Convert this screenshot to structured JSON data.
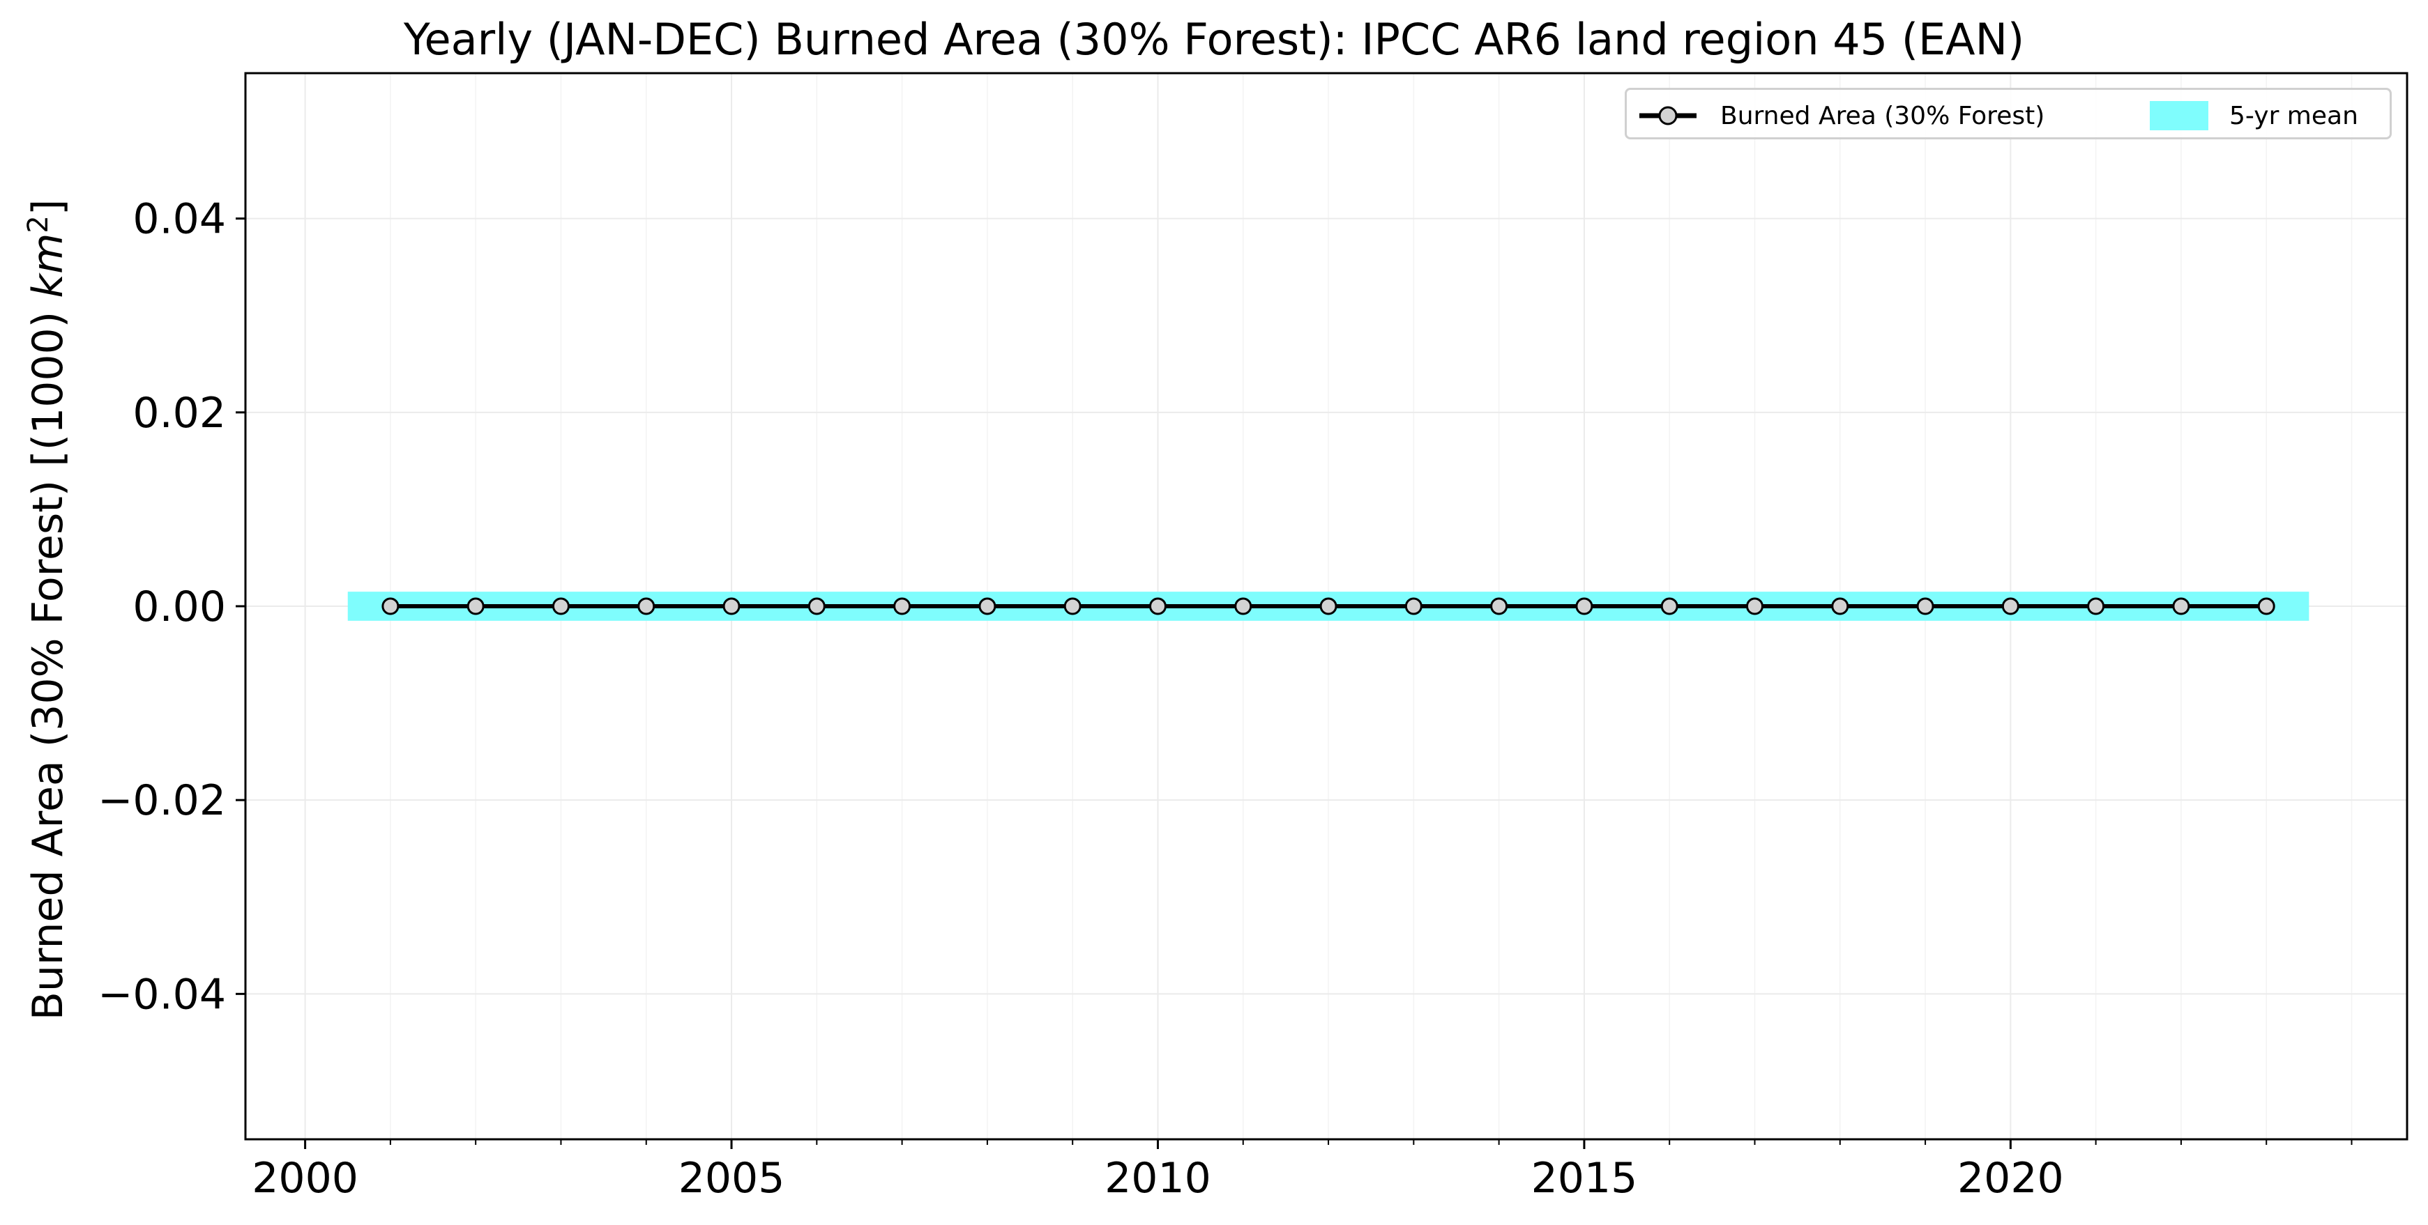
{
  "chart_data": {
    "type": "line",
    "title": "Yearly (JAN-DEC) Burned Area (30% Forest): IPCC AR6 land region 45 (EAN)",
    "ylabel_prefix": "Burned Area (30% Forest) [(1000) ",
    "ylabel_unit": "km",
    "ylabel_exp": "2",
    "ylabel_suffix": "]",
    "xlim": [
      1999.3,
      2024.65
    ],
    "ylim": [
      -0.055,
      0.055
    ],
    "xticks": [
      2000,
      2005,
      2010,
      2015,
      2020
    ],
    "xtick_labels": [
      "2000",
      "2005",
      "2010",
      "2015",
      "2020"
    ],
    "x_minor_ticks": [
      2001,
      2002,
      2003,
      2004,
      2006,
      2007,
      2008,
      2009,
      2011,
      2012,
      2013,
      2014,
      2016,
      2017,
      2018,
      2019,
      2021,
      2022,
      2023,
      2024
    ],
    "yticks": [
      0.04,
      0.02,
      0.0,
      -0.02,
      -0.04
    ],
    "ytick_labels": [
      "0.04",
      "0.02",
      "0.00",
      "−0.02",
      "−0.04"
    ],
    "grid": true,
    "legend_placement": "top-right",
    "series": [
      {
        "name": "Burned Area (30% Forest)",
        "color": "#000000",
        "marker_fill": "#d3d3d3",
        "x": [
          2001,
          2002,
          2003,
          2004,
          2005,
          2006,
          2007,
          2008,
          2009,
          2010,
          2011,
          2012,
          2013,
          2014,
          2015,
          2016,
          2017,
          2018,
          2019,
          2020,
          2021,
          2022,
          2023
        ],
        "y": [
          0,
          0,
          0,
          0,
          0,
          0,
          0,
          0,
          0,
          0,
          0,
          0,
          0,
          0,
          0,
          0,
          0,
          0,
          0,
          0,
          0,
          0,
          0
        ]
      }
    ],
    "band": {
      "name": "5-yr mean",
      "color": "#7ffdfd",
      "x_range": [
        2000.5,
        2023.5
      ],
      "y_range": [
        -0.0015,
        0.0015
      ]
    }
  }
}
